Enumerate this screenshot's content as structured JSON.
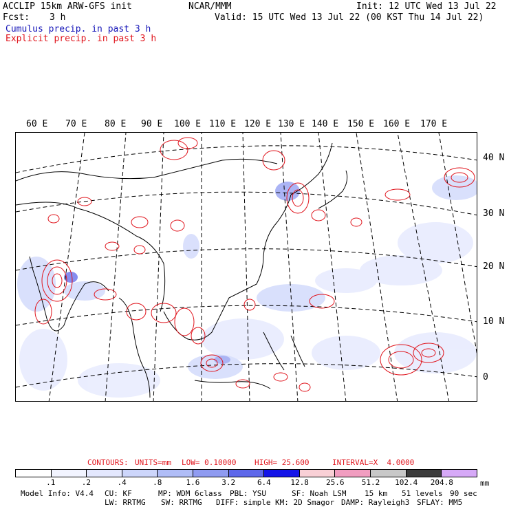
{
  "header": {
    "line1_left": "ACCLIP 15km ARW-GFS init",
    "line1_center": "NCAR/MMM",
    "line1_right": "Init: 12 UTC Wed 13 Jul 22",
    "fcst_label": "Fcst:",
    "fcst_value": "3 h",
    "valid": "Valid: 15 UTC Wed 13 Jul 22 (00 KST Thu 14 Jul 22)",
    "cumulus_label": "Cumulus precip. in past 3 h",
    "explicit_label": "Explicit precip. in past 3 h"
  },
  "map": {
    "lon_labels": [
      "60 E",
      "70 E",
      "80 E",
      "90 E",
      "100 E",
      "110 E",
      "120 E",
      "130 E",
      "140 E",
      "150 E",
      "160 E",
      "170 E"
    ],
    "lat_labels": [
      "40 N",
      "30 N",
      "20 N",
      "10 N",
      "0"
    ]
  },
  "contours": {
    "contours_label": "CONTOURS:",
    "units": "UNITS=mm",
    "low": "LOW= 0.10000",
    "high": "HIGH= 25.600",
    "interval": "INTERVAL=X  4.0000"
  },
  "colorbar": {
    "tick_labels": [
      ".1",
      ".2",
      ".4",
      ".8",
      "1.6",
      "3.2",
      "6.4",
      "12.8",
      "25.6",
      "51.2",
      "102.4",
      "204.8"
    ],
    "units": "mm",
    "colors": [
      "#ffffff",
      "#f2f4ff",
      "#e4e8fe",
      "#cdd6fb",
      "#b0bdf7",
      "#8f9bf1",
      "#5e68ea",
      "#1414e8",
      "#f9d0d6",
      "#f19dc0",
      "#c8c8c8",
      "#3c3c3c",
      "#d6a9f7"
    ]
  },
  "footer": {
    "line1": [
      "Model Info: V4.4",
      "CU: KF",
      "MP: WDM 6class",
      "PBL: YSU",
      "SF: Noah LSM",
      "15 km",
      "51 levels",
      "90 sec"
    ],
    "line2": [
      "LW: RRTMG",
      "SW: RRTMG",
      "DIFF: simple",
      "KM: 2D Smagor",
      "DAMP: Rayleigh3",
      "SFLAY: MM5"
    ]
  }
}
